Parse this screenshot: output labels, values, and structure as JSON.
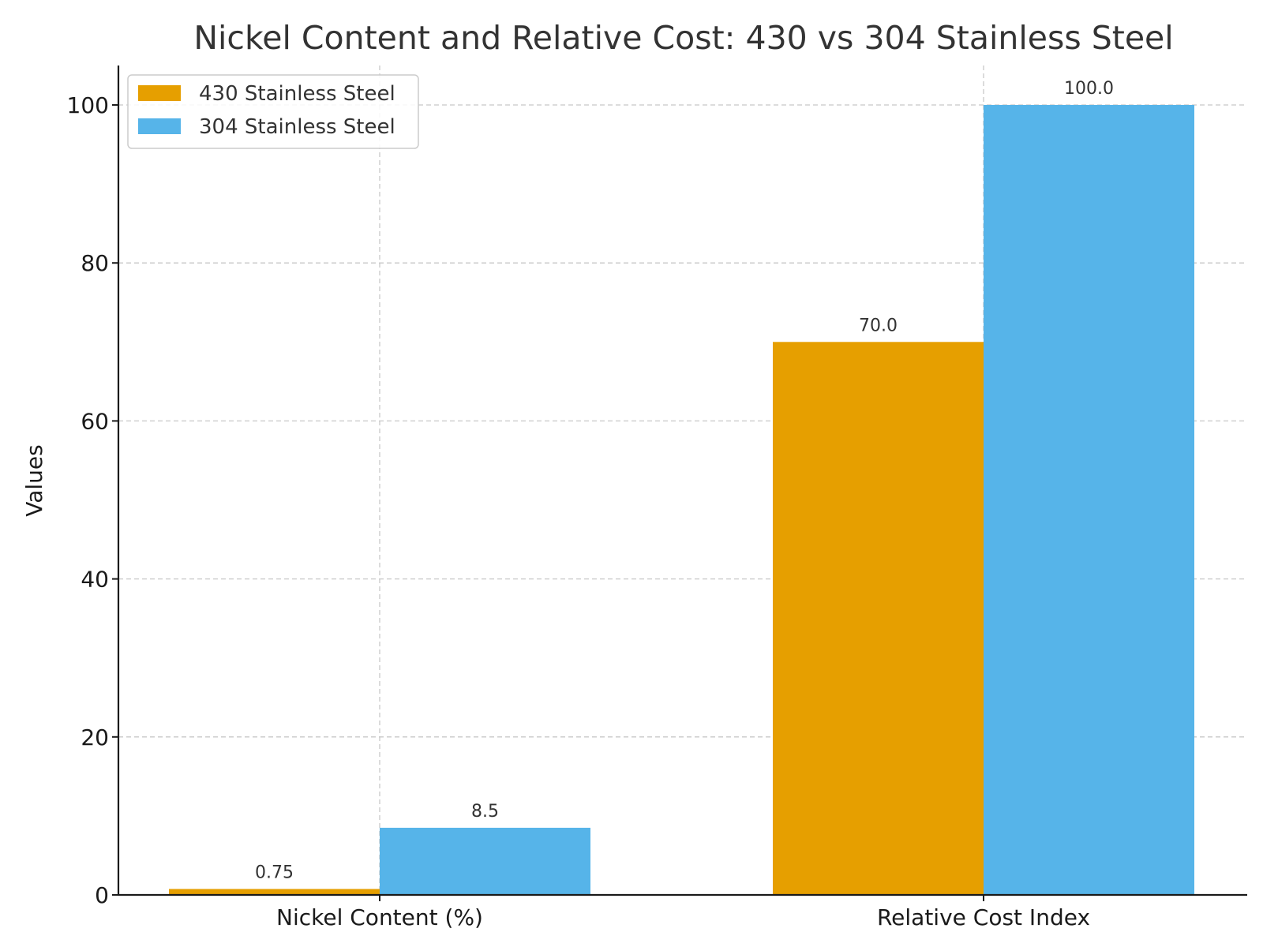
{
  "chart_data": {
    "type": "bar",
    "title": "Nickel Content and Relative Cost: 430 vs 304 Stainless Steel",
    "xlabel": "",
    "ylabel": "Values",
    "categories": [
      "Nickel Content (%)",
      "Relative Cost Index"
    ],
    "series": [
      {
        "name": "430 Stainless Steel",
        "color": "#E69F00",
        "values": [
          0.75,
          70.0
        ],
        "value_labels": [
          "0.75",
          "70.0"
        ]
      },
      {
        "name": "304 Stainless Steel",
        "color": "#56B4E9",
        "values": [
          8.5,
          100.0
        ],
        "value_labels": [
          "8.5",
          "100.0"
        ]
      }
    ],
    "ylim": [
      0,
      105
    ],
    "yticks": [
      0,
      20,
      40,
      60,
      80,
      100
    ],
    "grid": true,
    "legend_position": "top-left"
  }
}
